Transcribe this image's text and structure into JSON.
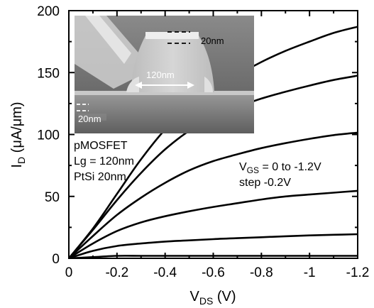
{
  "chart_data": {
    "type": "line",
    "xlabel": {
      "main": "V",
      "sub": "DS",
      "unit": " (V)"
    },
    "ylabel": {
      "main": "I",
      "sub": "D",
      "unit": " (μA/μm)"
    },
    "xlim": [
      0,
      -1.2
    ],
    "ylim": [
      0,
      200
    ],
    "x_ticks": [
      0,
      -0.2,
      -0.4,
      -0.6,
      -0.8,
      -1,
      -1.2
    ],
    "x_tick_labels": [
      "0",
      "-0.2",
      "-0.4",
      "-0.6",
      "-0.8",
      "-1",
      "-1.2"
    ],
    "y_ticks": [
      0,
      50,
      100,
      150,
      200
    ],
    "y_tick_labels": [
      "0",
      "50",
      "100",
      "150",
      "200"
    ],
    "x": [
      0,
      -0.1,
      -0.2,
      -0.3,
      -0.4,
      -0.5,
      -0.6,
      -0.7,
      -0.8,
      -0.9,
      -1.0,
      -1.1,
      -1.2
    ],
    "series": [
      {
        "values": [
          0,
          1,
          2,
          2,
          2,
          2,
          2,
          2,
          2,
          2,
          2,
          2,
          2
        ]
      },
      {
        "values": [
          0,
          6,
          10,
          12,
          13.5,
          14.5,
          15.5,
          16.3,
          17,
          17.8,
          18.5,
          19,
          19.5
        ]
      },
      {
        "values": [
          0,
          12,
          22,
          29,
          34,
          38,
          41.5,
          44.5,
          47.5,
          50,
          51.5,
          53,
          54.5
        ]
      },
      {
        "values": [
          0,
          18,
          35,
          49,
          61,
          71,
          78.5,
          84,
          89,
          93,
          96.5,
          99.5,
          101.5
        ]
      },
      {
        "values": [
          0,
          23,
          47,
          69,
          88,
          103,
          114,
          122,
          129,
          134.5,
          139.5,
          144,
          147.5
        ]
      },
      {
        "values": [
          0,
          24,
          52,
          80,
          104,
          122,
          136,
          148,
          158.5,
          167.5,
          175,
          182,
          187
        ]
      }
    ],
    "annotations": {
      "device_lines": [
        "pMOSFET",
        "Lg = 120nm",
        "PtSi 20nm"
      ],
      "vgs": {
        "main": "V",
        "sub": "GS",
        "rest": " = 0 to -1.2V"
      },
      "step": "step -0.2V"
    },
    "inset": {
      "label_top": "20nm",
      "label_width": "120nm",
      "label_bottom": "20nm"
    },
    "grid": false,
    "line_color": "#000000"
  }
}
